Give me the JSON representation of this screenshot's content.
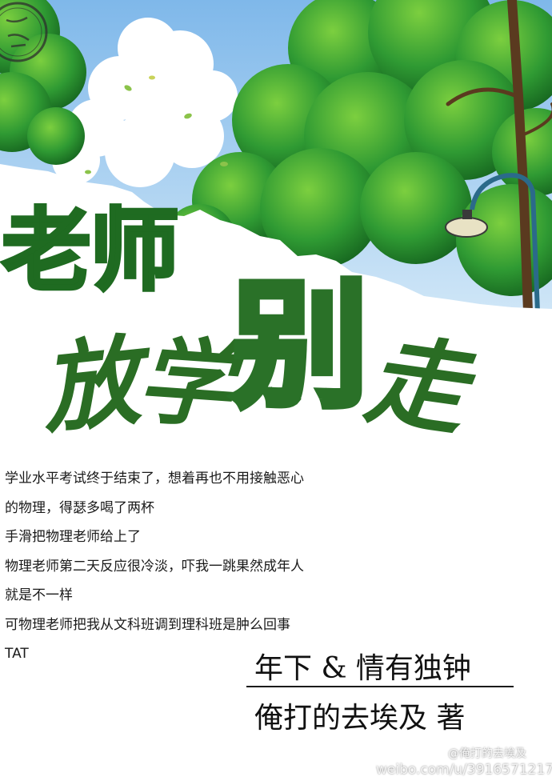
{
  "cover": {
    "title_line1": "老师",
    "title_line2_chars": [
      "放",
      "学",
      "别",
      "走"
    ],
    "blurb_lines": [
      "学业水平考试终于结束了，想着再也不用接触恶心",
      "的物理，得瑟多喝了两杯",
      "手滑把物理老师给上了",
      "物理老师第二天反应很冷淡，吓我一跳果然成年人",
      "就是不一样",
      "可物理老师把我从文科班调到理科班是肿么回事",
      "TAT"
    ],
    "tags": "年下 & 情有独钟",
    "author_line": "俺打的去埃及  著"
  },
  "watermark": {
    "handle": "@俺打的去埃及",
    "url": "weibo.com/u/3916571217"
  },
  "colors": {
    "title_green": "#1f6b21",
    "sky": "#8fc3ee",
    "foliage": "#2e8b2f",
    "text": "#1a1a1a"
  }
}
